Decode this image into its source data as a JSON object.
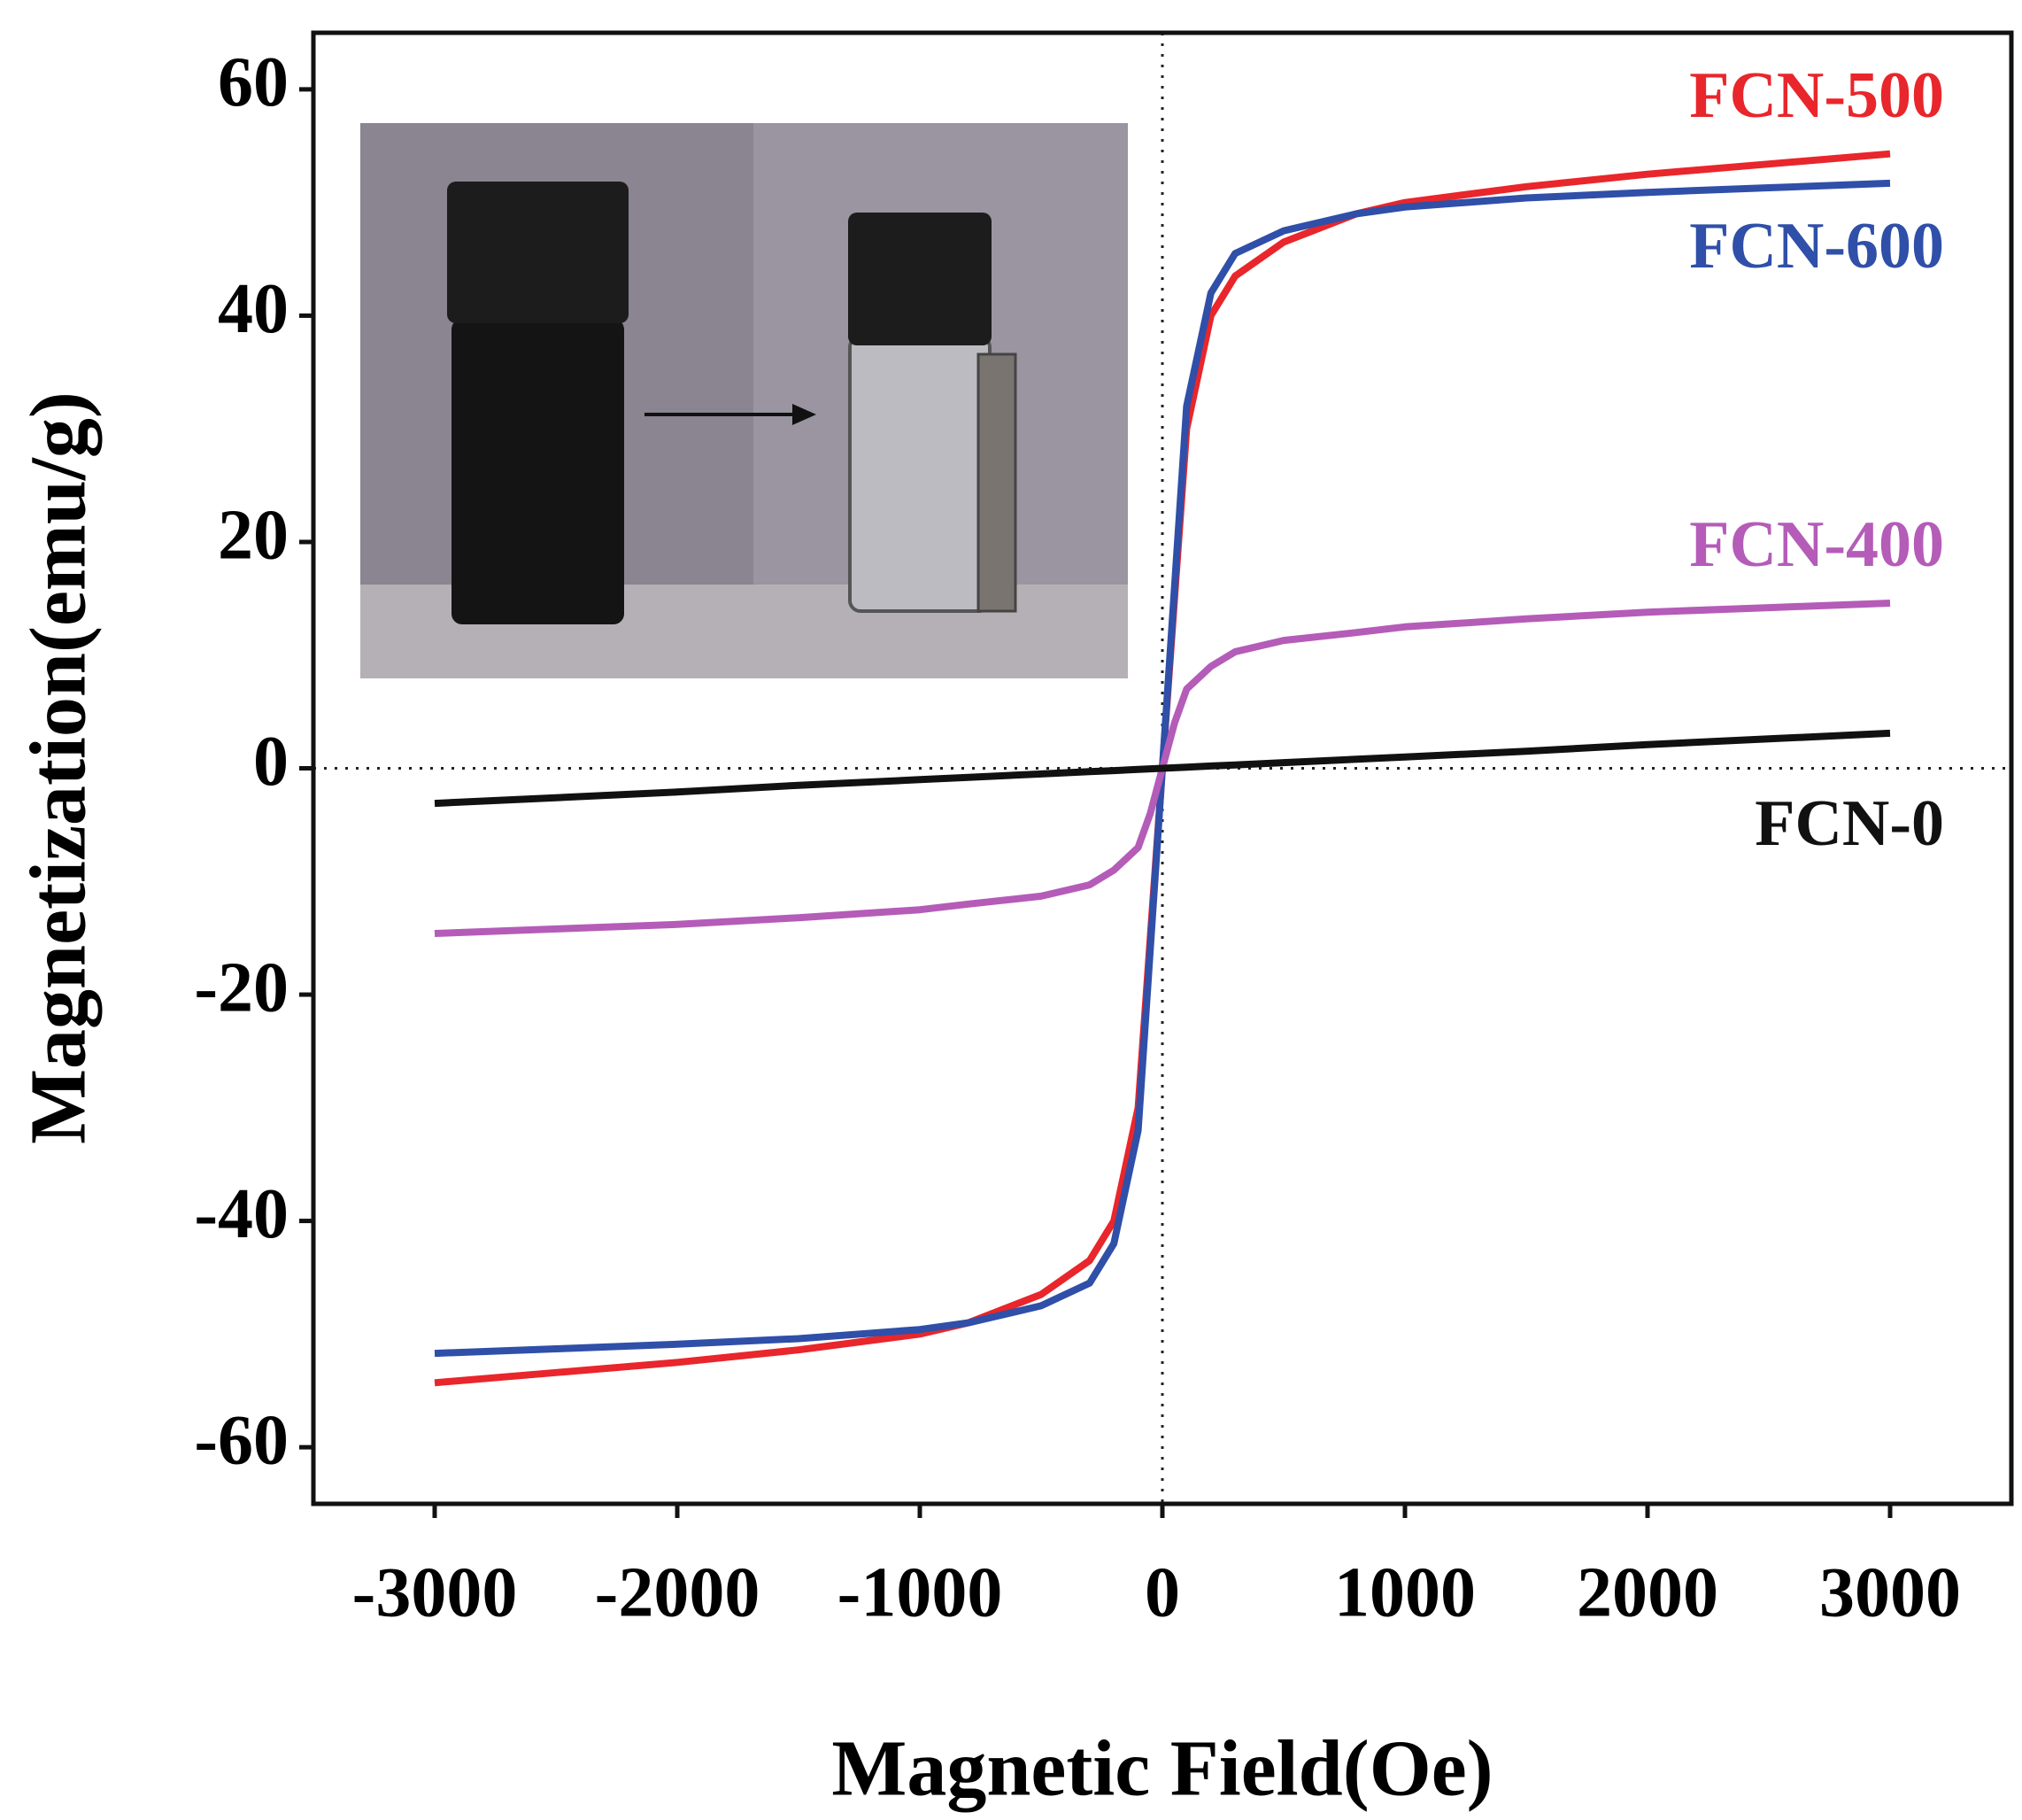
{
  "chart_data": {
    "type": "line",
    "x_label": "Magnetic Field(Oe)",
    "y_label": "Magnetization(emu/g)",
    "x": [
      -3000,
      -2500,
      -2000,
      -1500,
      -1000,
      -800,
      -500,
      -300,
      -200,
      -100,
      -50,
      0,
      50,
      100,
      200,
      300,
      500,
      800,
      1000,
      1500,
      2000,
      2500,
      3000
    ],
    "series": [
      {
        "name": "FCN-500",
        "color": "#e8262b",
        "values": [
          -54.3,
          -53.4,
          -52.5,
          -51.4,
          -50,
          -49,
          -46.5,
          -43.5,
          -40,
          -30,
          -15,
          0,
          15,
          30,
          40,
          43.5,
          46.5,
          49,
          50,
          51.4,
          52.5,
          53.4,
          54.3
        ]
      },
      {
        "name": "FCN-600",
        "color": "#2f4fa8",
        "values": [
          -51.7,
          -51.3,
          -50.9,
          -50.4,
          -49.6,
          -49,
          -47.5,
          -45.5,
          -42,
          -32,
          -16,
          0,
          16,
          32,
          42,
          45.5,
          47.5,
          49,
          49.6,
          50.4,
          50.9,
          51.3,
          51.7
        ]
      },
      {
        "name": "FCN-400",
        "color": "#b45cb8",
        "values": [
          -14.6,
          -14.2,
          -13.8,
          -13.2,
          -12.5,
          -12,
          -11.3,
          -10.3,
          -9,
          -7,
          -4,
          0,
          4,
          7,
          9,
          10.3,
          11.3,
          12,
          12.5,
          13.2,
          13.8,
          14.2,
          14.6
        ]
      },
      {
        "name": "FCN-0",
        "color": "#111111",
        "values": [
          -3.1,
          -2.6,
          -2.1,
          -1.5,
          -1,
          -0.8,
          -0.5,
          -0.3,
          -0.2,
          -0.1,
          -0.05,
          0,
          0.05,
          0.1,
          0.2,
          0.3,
          0.5,
          0.8,
          1,
          1.5,
          2.1,
          2.6,
          3.1
        ]
      }
    ],
    "xlim": [
      -3500,
      3500
    ],
    "ylim": [
      -65,
      65
    ],
    "xticks": [
      -3000,
      -2000,
      -1000,
      0,
      1000,
      2000,
      3000
    ],
    "yticks": [
      -60,
      -40,
      -20,
      0,
      20,
      40,
      60
    ]
  }
}
